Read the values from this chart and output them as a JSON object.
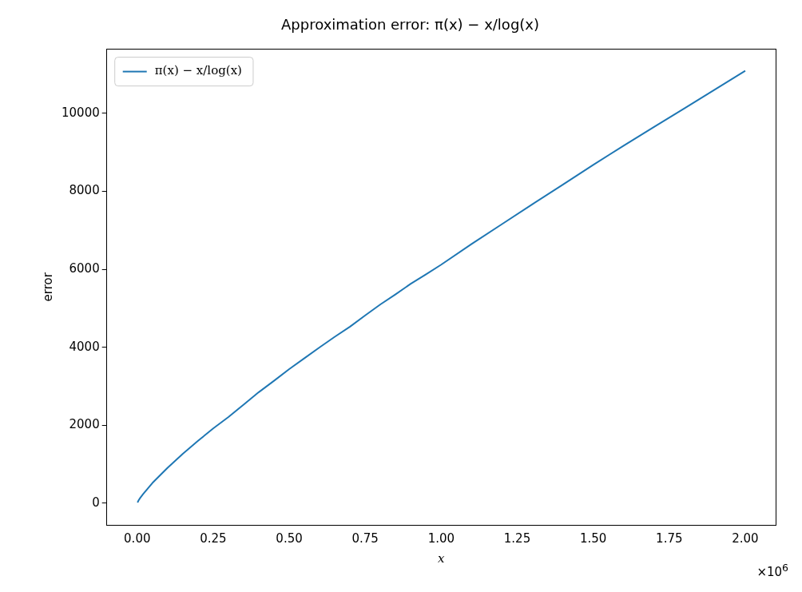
{
  "chart_data": {
    "type": "line",
    "title": "Approximation error: π(x) − x/log(x)",
    "xlabel": "x",
    "ylabel": "error",
    "x": [
      0.001,
      0.005,
      0.01,
      0.02,
      0.05,
      0.1,
      0.15,
      0.2,
      0.25,
      0.3,
      0.35,
      0.4,
      0.45,
      0.5,
      0.55,
      0.6,
      0.65,
      0.7,
      0.75,
      0.8,
      0.85,
      0.9,
      0.95,
      1.0,
      1.1,
      1.2,
      1.3,
      1.4,
      1.5,
      1.6,
      1.7,
      1.8,
      1.9,
      2.0
    ],
    "series": [
      {
        "name": "π(x) − x/log(x)",
        "color": "#1f77b4",
        "values": [
          20,
          80,
          140,
          240,
          520,
          910,
          1270,
          1600,
          1920,
          2210,
          2530,
          2850,
          3140,
          3440,
          3720,
          4000,
          4270,
          4530,
          4820,
          5100,
          5360,
          5630,
          5870,
          6120,
          6650,
          7160,
          7670,
          8170,
          8680,
          9170,
          9650,
          10130,
          10610,
          11090
        ]
      }
    ],
    "xlim": [
      -0.1,
      2.1
    ],
    "ylim": [
      -555,
      11645
    ],
    "xticks": [
      {
        "value": 0,
        "label": "0.00"
      },
      {
        "value": 0.25,
        "label": "0.25"
      },
      {
        "value": 0.5,
        "label": "0.50"
      },
      {
        "value": 0.75,
        "label": "0.75"
      },
      {
        "value": 1,
        "label": "1.00"
      },
      {
        "value": 1.25,
        "label": "1.25"
      },
      {
        "value": 1.5,
        "label": "1.50"
      },
      {
        "value": 1.75,
        "label": "1.75"
      },
      {
        "value": 2,
        "label": "2.00"
      }
    ],
    "yticks": [
      0,
      2000,
      4000,
      6000,
      8000,
      10000
    ],
    "grid": false,
    "legend": "top left",
    "marker": "none",
    "line_style": "solid",
    "annotations": [
      "×10$^{6}$"
    ]
  }
}
